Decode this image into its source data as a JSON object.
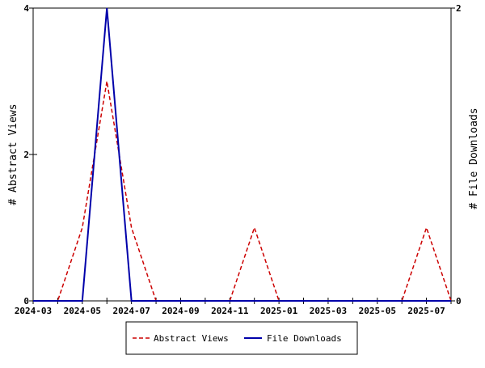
{
  "chart_data": {
    "type": "line",
    "x": [
      "2024-03",
      "2024-04",
      "2024-05",
      "2024-06",
      "2024-07",
      "2024-08",
      "2024-09",
      "2024-10",
      "2024-11",
      "2024-12",
      "2025-01",
      "2025-02",
      "2025-03",
      "2025-04",
      "2025-05",
      "2025-06",
      "2025-07",
      "2025-08"
    ],
    "x_tick_labels": [
      "2024-03",
      "2024-05",
      "2024-07",
      "2024-09",
      "2024-11",
      "2025-01",
      "2025-03",
      "2025-05",
      "2025-07"
    ],
    "series": [
      {
        "name": "Abstract Views",
        "axis": "left",
        "color": "#cc0000",
        "style": "dashed",
        "values": [
          0,
          0,
          1,
          3,
          1,
          0,
          0,
          0,
          0,
          1,
          0,
          0,
          0,
          0,
          0,
          0,
          1,
          0
        ]
      },
      {
        "name": "File Downloads",
        "axis": "right",
        "color": "#0000aa",
        "style": "solid",
        "values": [
          0,
          0,
          0,
          2,
          0,
          0,
          0,
          0,
          0,
          0,
          0,
          0,
          0,
          0,
          0,
          0,
          0,
          0
        ]
      }
    ],
    "y_left": {
      "label": "# Abstract Views",
      "ylim": [
        0,
        4
      ],
      "ticks": [
        "0",
        "2",
        "4"
      ]
    },
    "y_right": {
      "label": "# File Downloads",
      "ylim": [
        0,
        2
      ],
      "ticks": [
        "0",
        "2"
      ]
    },
    "grid": false,
    "legend_position": "bottom-center"
  }
}
